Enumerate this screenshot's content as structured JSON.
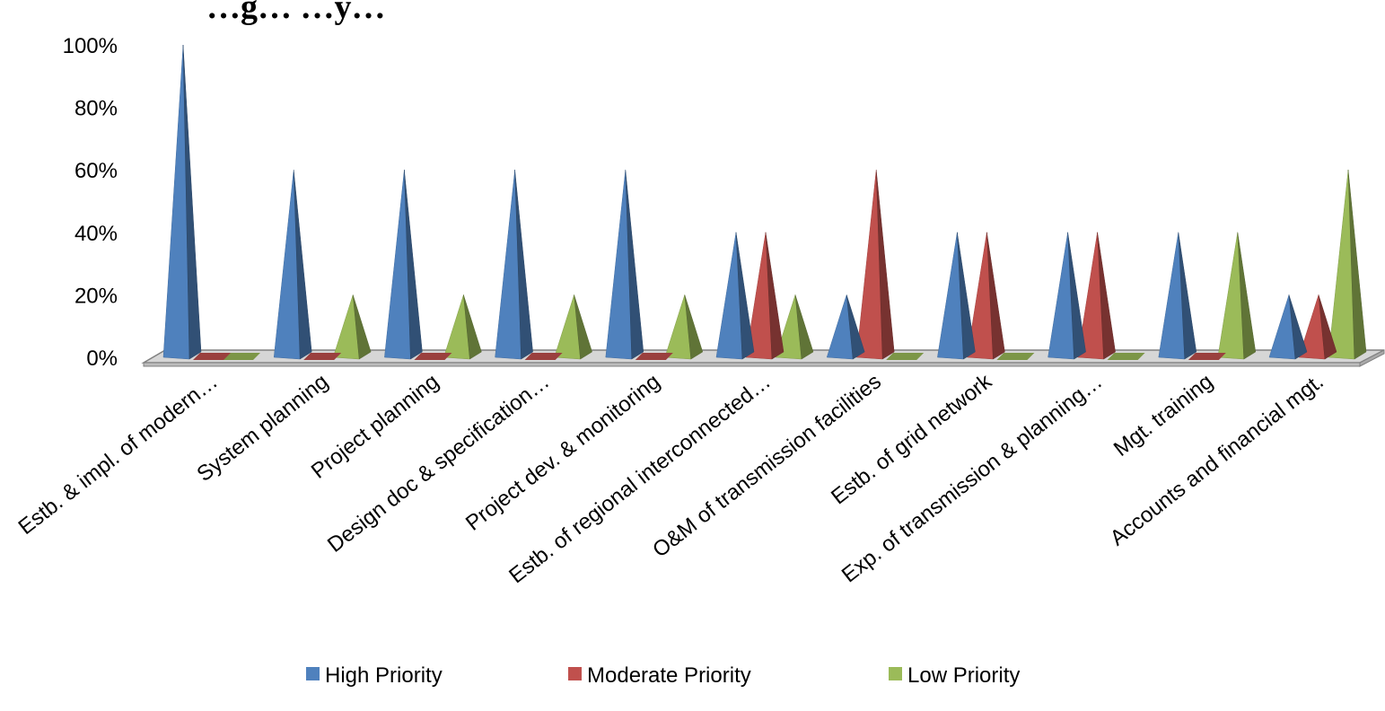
{
  "chart_data": {
    "type": "bar",
    "title": "…g… …y…",
    "categories": [
      "Estb. & impl. of modern…",
      "System planning",
      "Project planning",
      "Design doc & specification…",
      "Project dev. & monitoring",
      "Estb. of regional interconnected…",
      "O&M of transmission facilities",
      "Estb. of grid network",
      "Exp. of transmission & planning…",
      "Mgt. training",
      "Accounts and financial mgt."
    ],
    "series": [
      {
        "name": "High Priority",
        "color": "#4F81BD",
        "values": [
          100,
          60,
          60,
          60,
          60,
          40,
          20,
          40,
          40,
          40,
          20
        ]
      },
      {
        "name": "Moderate Priority",
        "color": "#C0504D",
        "values": [
          0,
          0,
          0,
          0,
          0,
          40,
          60,
          40,
          40,
          0,
          20
        ]
      },
      {
        "name": "Low Priority",
        "color": "#9BBB59",
        "values": [
          0,
          20,
          20,
          20,
          20,
          20,
          0,
          0,
          0,
          40,
          60
        ]
      }
    ],
    "yticks": [
      "0%",
      "20%",
      "40%",
      "60%",
      "80%",
      "100%"
    ],
    "ylim": [
      0,
      100
    ],
    "xlabel": "",
    "ylabel": "",
    "grid": false,
    "legend_position": "bottom",
    "style": "3d-pyramid"
  }
}
